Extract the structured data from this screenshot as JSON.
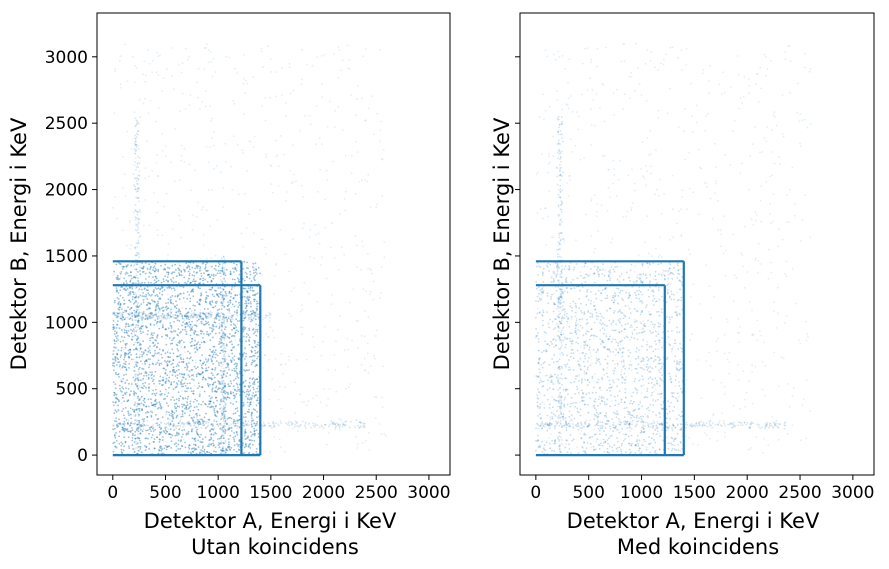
{
  "chart_data": [
    {
      "type": "scatter",
      "xlabel_line1": "Detektor A, Energi i KeV",
      "xlabel_line2": "Utan koincidens",
      "ylabel": "Detektor B, Energi i KeV",
      "xlim": [
        -150,
        3200
      ],
      "ylim": [
        -150,
        3330
      ],
      "xticks": [
        "0",
        "500",
        "1000",
        "1500",
        "2000",
        "2500",
        "3000"
      ],
      "yticks": [
        "0",
        "500",
        "1000",
        "1500",
        "2000",
        "2500",
        "3000"
      ],
      "show_yticklabels": true,
      "color": "#1f77b4",
      "lines": [
        {
          "x": [
            0,
            1220
          ],
          "y": [
            1460,
            1460
          ]
        },
        {
          "x": [
            0,
            1400
          ],
          "y": [
            1280,
            1280
          ]
        },
        {
          "x": [
            1220,
            1220
          ],
          "y": [
            0,
            1460
          ]
        },
        {
          "x": [
            1400,
            1400
          ],
          "y": [
            0,
            1280
          ]
        },
        {
          "x": [
            0,
            1400
          ],
          "y": [
            0,
            0
          ]
        }
      ],
      "dense_region": {
        "x": [
          0,
          1400
        ],
        "y": [
          0,
          1460
        ],
        "level": "high"
      },
      "streaks": [
        {
          "x": [
            230,
            230
          ],
          "y": [
            0,
            2550
          ]
        },
        {
          "x": [
            0,
            2400
          ],
          "y": [
            230,
            230
          ]
        },
        {
          "x": [
            1050,
            1050
          ],
          "y": [
            0,
            1500
          ]
        },
        {
          "x": [
            0,
            1500
          ],
          "y": [
            1050,
            1050
          ]
        }
      ]
    },
    {
      "type": "scatter",
      "xlabel_line1": "Detektor A, Energi i KeV",
      "xlabel_line2": "Med koincidens",
      "ylabel": "Detektor B, Energi i KeV",
      "xlim": [
        -150,
        3200
      ],
      "ylim": [
        -150,
        3330
      ],
      "xticks": [
        "0",
        "500",
        "1000",
        "1500",
        "2000",
        "2500",
        "3000"
      ],
      "yticks": [
        "0",
        "500",
        "1000",
        "1500",
        "2000",
        "2500",
        "3000"
      ],
      "show_yticklabels": false,
      "color": "#1f77b4",
      "lines": [
        {
          "x": [
            0,
            1400
          ],
          "y": [
            1460,
            1460
          ]
        },
        {
          "x": [
            0,
            1220
          ],
          "y": [
            1280,
            1280
          ]
        },
        {
          "x": [
            1220,
            1220
          ],
          "y": [
            0,
            1280
          ]
        },
        {
          "x": [
            1400,
            1400
          ],
          "y": [
            0,
            1460
          ]
        },
        {
          "x": [
            0,
            1400
          ],
          "y": [
            0,
            0
          ]
        }
      ],
      "dense_region": {
        "x": [
          0,
          1400
        ],
        "y": [
          0,
          1460
        ],
        "level": "medium"
      },
      "streaks": [
        {
          "x": [
            230,
            230
          ],
          "y": [
            0,
            2550
          ]
        },
        {
          "x": [
            0,
            2400
          ],
          "y": [
            230,
            230
          ]
        }
      ]
    }
  ]
}
